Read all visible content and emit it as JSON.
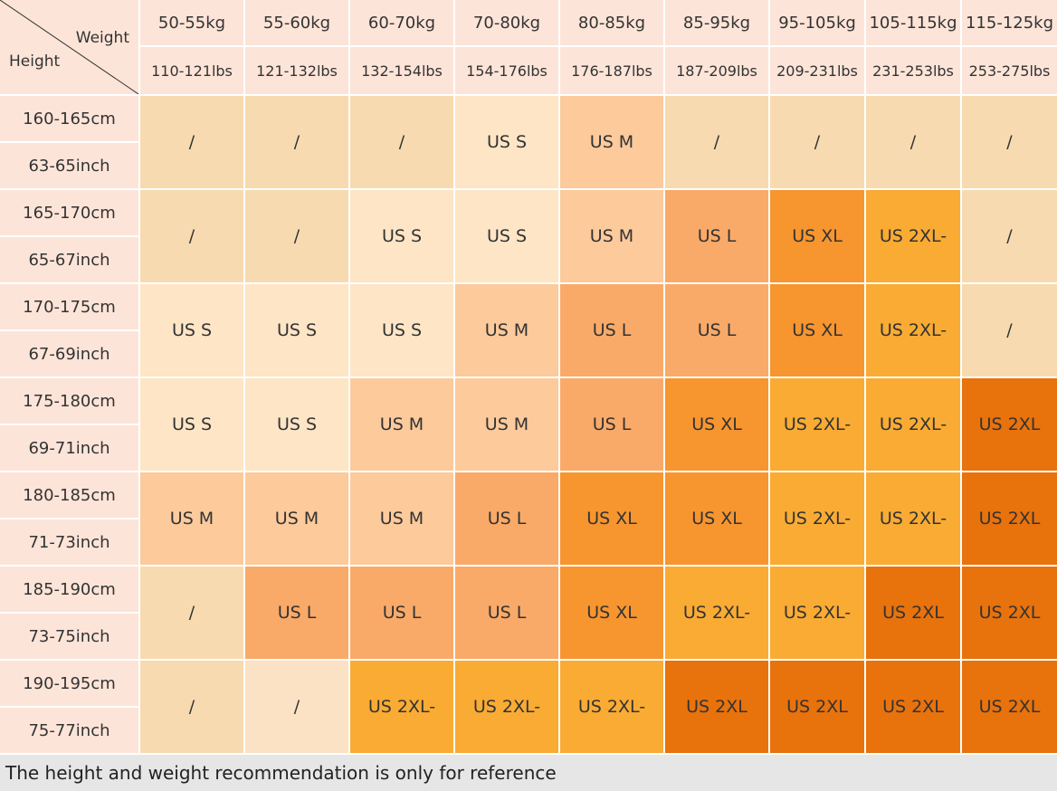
{
  "corner": {
    "weight_label": "Weight",
    "height_label": "Height"
  },
  "weights": [
    {
      "kg": "50-55kg",
      "lbs": "110-121lbs"
    },
    {
      "kg": "55-60kg",
      "lbs": "121-132lbs"
    },
    {
      "kg": "60-70kg",
      "lbs": "132-154lbs"
    },
    {
      "kg": "70-80kg",
      "lbs": "154-176lbs"
    },
    {
      "kg": "80-85kg",
      "lbs": "176-187lbs"
    },
    {
      "kg": "85-95kg",
      "lbs": "187-209lbs"
    },
    {
      "kg": "95-105kg",
      "lbs": "209-231lbs"
    },
    {
      "kg": "105-115kg",
      "lbs": "231-253lbs"
    },
    {
      "kg": "115-125kg",
      "lbs": "253-275lbs"
    }
  ],
  "rows": [
    {
      "cm": "160-165cm",
      "inch": "63-65inch",
      "cells": [
        {
          "size": "/",
          "color": "#f8dab0"
        },
        {
          "size": "/",
          "color": "#f8dab0"
        },
        {
          "size": "/",
          "color": "#f8dab0"
        },
        {
          "size": "US S",
          "color": "#fde5c6"
        },
        {
          "size": "US M",
          "color": "#fcca9b"
        },
        {
          "size": "/",
          "color": "#f8dab0"
        },
        {
          "size": "/",
          "color": "#f8dab0"
        },
        {
          "size": "/",
          "color": "#f8dab0"
        },
        {
          "size": "/",
          "color": "#f8dab0"
        }
      ]
    },
    {
      "cm": "165-170cm",
      "inch": "65-67inch",
      "cells": [
        {
          "size": "/",
          "color": "#f8dab0"
        },
        {
          "size": "/",
          "color": "#f8dab0"
        },
        {
          "size": "US S",
          "color": "#fde5c6"
        },
        {
          "size": "US S",
          "color": "#fde5c6"
        },
        {
          "size": "US M",
          "color": "#fcca9b"
        },
        {
          "size": "US L",
          "color": "#f9aa68"
        },
        {
          "size": "US XL",
          "color": "#f7952f"
        },
        {
          "size": "US 2XL-",
          "color": "#f9ab33"
        },
        {
          "size": "/",
          "color": "#f8dab0"
        }
      ]
    },
    {
      "cm": "170-175cm",
      "inch": "67-69inch",
      "cells": [
        {
          "size": "US S",
          "color": "#fde5c6"
        },
        {
          "size": "US S",
          "color": "#fde5c6"
        },
        {
          "size": "US S",
          "color": "#fde5c6"
        },
        {
          "size": "US M",
          "color": "#fcca9b"
        },
        {
          "size": "US L",
          "color": "#f9aa68"
        },
        {
          "size": "US L",
          "color": "#f9aa68"
        },
        {
          "size": "US XL",
          "color": "#f7952f"
        },
        {
          "size": "US 2XL-",
          "color": "#f9ab33"
        },
        {
          "size": "/",
          "color": "#f8dab0"
        }
      ]
    },
    {
      "cm": "175-180cm",
      "inch": "69-71inch",
      "cells": [
        {
          "size": "US S",
          "color": "#fde5c6"
        },
        {
          "size": "US S",
          "color": "#fde5c6"
        },
        {
          "size": "US M",
          "color": "#fcca9b"
        },
        {
          "size": "US M",
          "color": "#fcca9b"
        },
        {
          "size": "US L",
          "color": "#f9aa68"
        },
        {
          "size": "US XL",
          "color": "#f7952f"
        },
        {
          "size": "US 2XL-",
          "color": "#f9ab33"
        },
        {
          "size": "US 2XL-",
          "color": "#f9ab33"
        },
        {
          "size": "US 2XL",
          "color": "#e8720c"
        }
      ]
    },
    {
      "cm": "180-185cm",
      "inch": "71-73inch",
      "cells": [
        {
          "size": "US M",
          "color": "#fcca9b"
        },
        {
          "size": "US M",
          "color": "#fcca9b"
        },
        {
          "size": "US M",
          "color": "#fcca9b"
        },
        {
          "size": "US L",
          "color": "#f9aa68"
        },
        {
          "size": "US XL",
          "color": "#f7952f"
        },
        {
          "size": "US XL",
          "color": "#f7952f"
        },
        {
          "size": "US 2XL-",
          "color": "#f9ab33"
        },
        {
          "size": "US 2XL-",
          "color": "#f9ab33"
        },
        {
          "size": "US 2XL",
          "color": "#e8720c"
        }
      ]
    },
    {
      "cm": "185-190cm",
      "inch": "73-75inch",
      "cells": [
        {
          "size": "/",
          "color": "#f8dab0"
        },
        {
          "size": "US L",
          "color": "#f9aa68"
        },
        {
          "size": "US L",
          "color": "#f9aa68"
        },
        {
          "size": "US L",
          "color": "#f9aa68"
        },
        {
          "size": "US XL",
          "color": "#f7952f"
        },
        {
          "size": "US 2XL-",
          "color": "#f9ab33"
        },
        {
          "size": "US 2XL-",
          "color": "#f9ab33"
        },
        {
          "size": "US 2XL",
          "color": "#e8720c"
        },
        {
          "size": "US 2XL",
          "color": "#e8720c"
        }
      ]
    },
    {
      "cm": "190-195cm",
      "inch": "75-77inch",
      "cells": [
        {
          "size": "/",
          "color": "#f8dab0"
        },
        {
          "size": "/",
          "color": "#fbe2c4"
        },
        {
          "size": "US 2XL-",
          "color": "#f9ab33"
        },
        {
          "size": "US 2XL-",
          "color": "#f9ab33"
        },
        {
          "size": "US 2XL-",
          "color": "#f9ab33"
        },
        {
          "size": "US 2XL",
          "color": "#e8720c"
        },
        {
          "size": "US 2XL",
          "color": "#e8720c"
        },
        {
          "size": "US 2XL",
          "color": "#e8720c"
        },
        {
          "size": "US 2XL",
          "color": "#e8720c"
        }
      ]
    }
  ],
  "footer": "The height and weight recommendation is only for reference"
}
